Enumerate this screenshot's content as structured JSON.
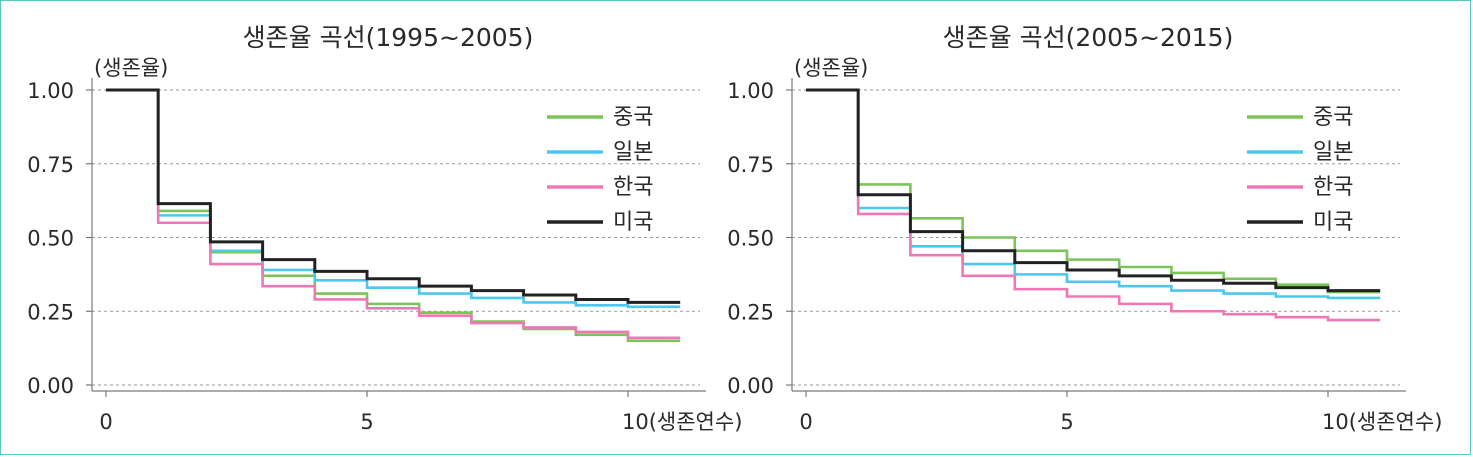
{
  "chart_data": [
    {
      "type": "line",
      "step": true,
      "title": "생존율 곡선(1995~2005)",
      "ylabel": "(생존율)",
      "xlabel": "(생존연수)",
      "xlim": [
        0,
        11
      ],
      "ylim": [
        0,
        1
      ],
      "x_ticks": [
        0,
        5,
        10
      ],
      "y_ticks": [
        "0.00",
        "0.25",
        "0.50",
        "0.75",
        "1.00"
      ],
      "grid": "horizontal dashed",
      "legend_position": "top-right",
      "x": [
        0,
        1,
        2,
        3,
        4,
        5,
        6,
        7,
        8,
        9,
        10,
        11
      ],
      "series": [
        {
          "name": "중국",
          "color": "#7cc35a",
          "values": [
            1.0,
            0.59,
            0.45,
            0.37,
            0.31,
            0.275,
            0.245,
            0.215,
            0.19,
            0.17,
            0.15,
            0.15
          ]
        },
        {
          "name": "일본",
          "color": "#4dc7ec",
          "values": [
            1.0,
            0.575,
            0.455,
            0.39,
            0.355,
            0.33,
            0.31,
            0.295,
            0.28,
            0.27,
            0.265,
            0.265
          ]
        },
        {
          "name": "한국",
          "color": "#ee78b6",
          "values": [
            1.0,
            0.55,
            0.41,
            0.335,
            0.29,
            0.26,
            0.235,
            0.21,
            0.195,
            0.18,
            0.16,
            0.16
          ]
        },
        {
          "name": "미국",
          "color": "#222222",
          "values": [
            1.0,
            0.615,
            0.485,
            0.425,
            0.385,
            0.36,
            0.335,
            0.32,
            0.305,
            0.29,
            0.28,
            0.28
          ]
        }
      ]
    },
    {
      "type": "line",
      "step": true,
      "title": "생존율 곡선(2005~2015)",
      "ylabel": "(생존율)",
      "xlabel": "(생존연수)",
      "xlim": [
        0,
        11
      ],
      "ylim": [
        0,
        1
      ],
      "x_ticks": [
        0,
        5,
        10
      ],
      "y_ticks": [
        "0.00",
        "0.25",
        "0.50",
        "0.75",
        "1.00"
      ],
      "grid": "horizontal dashed",
      "legend_position": "top-right",
      "x": [
        0,
        1,
        2,
        3,
        4,
        5,
        6,
        7,
        8,
        9,
        10,
        11
      ],
      "series": [
        {
          "name": "중국",
          "color": "#7cc35a",
          "values": [
            1.0,
            0.68,
            0.565,
            0.5,
            0.455,
            0.425,
            0.4,
            0.38,
            0.36,
            0.34,
            0.315,
            0.315
          ]
        },
        {
          "name": "일본",
          "color": "#4dc7ec",
          "values": [
            1.0,
            0.6,
            0.47,
            0.41,
            0.375,
            0.35,
            0.335,
            0.32,
            0.31,
            0.3,
            0.295,
            0.295
          ]
        },
        {
          "name": "한국",
          "color": "#ee78b6",
          "values": [
            1.0,
            0.58,
            0.44,
            0.37,
            0.325,
            0.3,
            0.275,
            0.25,
            0.24,
            0.23,
            0.22,
            0.22
          ]
        },
        {
          "name": "미국",
          "color": "#222222",
          "values": [
            1.0,
            0.645,
            0.52,
            0.455,
            0.415,
            0.39,
            0.37,
            0.355,
            0.345,
            0.33,
            0.32,
            0.32
          ]
        }
      ]
    }
  ]
}
